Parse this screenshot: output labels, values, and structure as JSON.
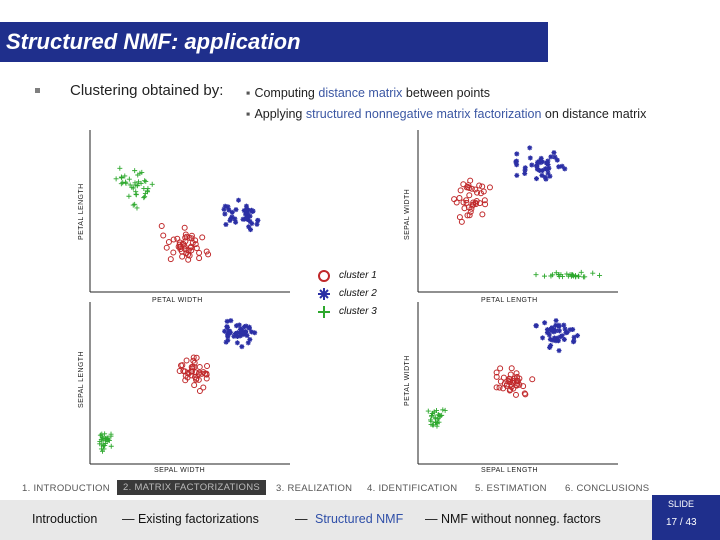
{
  "title": "Structured NMF: application",
  "lead": "Clustering obtained by:",
  "bullets": [
    {
      "before": "Computing ",
      "hl": "distance matrix",
      "after": " between points"
    },
    {
      "before": "Applying ",
      "hl": "structured nonnegative matrix factorization",
      "after": " on distance matrix"
    }
  ],
  "legend": [
    {
      "label": "cluster 1",
      "color": "#c0282a",
      "symbol": "circle"
    },
    {
      "label": "cluster 2",
      "color": "#2b2fa5",
      "symbol": "star"
    },
    {
      "label": "cluster 3",
      "color": "#2da82d",
      "symbol": "plus"
    }
  ],
  "panels": [
    {
      "xlabel": "PETAL WIDTH",
      "ylabel": "PETAL LENGTH"
    },
    {
      "xlabel": "PETAL LENGTH",
      "ylabel": "SEPAL WIDTH"
    },
    {
      "xlabel": "SEPAL WIDTH",
      "ylabel": "SEPAL LENGTH"
    },
    {
      "xlabel": "SEPAL LENGTH",
      "ylabel": "PETAL WIDTH"
    }
  ],
  "sections": [
    {
      "label": "1. INTRODUCTION",
      "active": false
    },
    {
      "label": "2. MATRIX FACTORIZATIONS",
      "active": true
    },
    {
      "label": "3. REALIZATION",
      "active": false
    },
    {
      "label": "4. IDENTIFICATION",
      "active": false
    },
    {
      "label": "5. ESTIMATION",
      "active": false
    },
    {
      "label": "6. CONCLUSIONS",
      "active": false
    }
  ],
  "footer": {
    "intro": "Introduction",
    "existing": "— Existing factorizations",
    "dash": "—",
    "current": "Structured NMF",
    "nonneg": "— NMF without nonneg. factors",
    "slide_word": "SLIDE",
    "slide_num": "17 / 43"
  }
}
